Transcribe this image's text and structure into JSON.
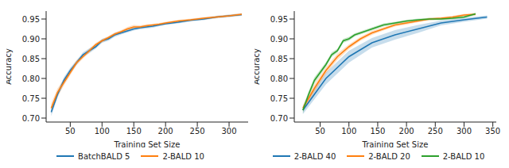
{
  "chart_data": [
    {
      "type": "line",
      "x_label": "Training Set Size",
      "y_label": "Accuracy",
      "xlim": [
        12,
        330
      ],
      "xticks": [
        50,
        100,
        150,
        200,
        250,
        300
      ],
      "ylim": [
        0.69,
        0.97
      ],
      "yticks": [
        {
          "value": 0.7,
          "label": "0.70"
        },
        0.75,
        {
          "value": 0.8,
          "label": "0.80"
        },
        0.85,
        {
          "value": 0.9,
          "label": "0.90"
        },
        0.95
      ],
      "grid": false,
      "legend": "bottom",
      "series": [
        {
          "name": "BatchBALD 5",
          "color": "#1f77b4",
          "x": [
            20,
            30,
            40,
            50,
            60,
            70,
            80,
            90,
            100,
            110,
            120,
            130,
            140,
            150,
            160,
            170,
            180,
            190,
            200,
            220,
            240,
            260,
            280,
            300,
            320
          ],
          "values": [
            0.715,
            0.76,
            0.795,
            0.82,
            0.84,
            0.86,
            0.87,
            0.88,
            0.895,
            0.9,
            0.91,
            0.915,
            0.92,
            0.925,
            0.928,
            0.93,
            0.932,
            0.935,
            0.938,
            0.942,
            0.947,
            0.95,
            0.955,
            0.958,
            0.961
          ],
          "error": [
            0.01,
            0.008,
            0.008,
            0.007,
            0.006,
            0.006,
            0.006,
            0.005,
            0.005,
            0.005,
            0.005,
            0.004,
            0.004,
            0.004,
            0.004,
            0.004,
            0.004,
            0.003,
            0.003,
            0.003,
            0.003,
            0.003,
            0.003,
            0.003,
            0.003
          ]
        },
        {
          "name": "2-BALD 10",
          "color": "#ff7f0e",
          "x": [
            20,
            30,
            40,
            50,
            60,
            70,
            80,
            90,
            100,
            110,
            120,
            130,
            140,
            150,
            160,
            170,
            180,
            190,
            200,
            220,
            240,
            260,
            280,
            300,
            320
          ],
          "values": [
            0.725,
            0.765,
            0.79,
            0.815,
            0.84,
            0.855,
            0.87,
            0.885,
            0.895,
            0.903,
            0.912,
            0.918,
            0.925,
            0.93,
            0.93,
            0.933,
            0.935,
            0.937,
            0.94,
            0.945,
            0.948,
            0.952,
            0.955,
            0.958,
            0.962
          ],
          "error": [
            0.012,
            0.01,
            0.008,
            0.007,
            0.006,
            0.005,
            0.005,
            0.005,
            0.004,
            0.004,
            0.004,
            0.004,
            0.005,
            0.005,
            0.004,
            0.004,
            0.003,
            0.003,
            0.003,
            0.003,
            0.003,
            0.003,
            0.003,
            0.003,
            0.003
          ]
        }
      ]
    },
    {
      "type": "line",
      "x_label": "Training Set Size",
      "y_label": "Accuracy",
      "xlim": [
        5,
        356
      ],
      "xticks": [
        50,
        100,
        150,
        200,
        250,
        300,
        350
      ],
      "ylim": [
        0.69,
        0.97
      ],
      "yticks": [
        {
          "value": 0.7,
          "label": "0.70"
        },
        0.75,
        {
          "value": 0.8,
          "label": "0.80"
        },
        0.85,
        {
          "value": 0.9,
          "label": "0.90"
        },
        0.95
      ],
      "grid": false,
      "legend": "bottom",
      "series": [
        {
          "name": "2-BALD 40",
          "color": "#1f77b4",
          "x": [
            20,
            60,
            100,
            140,
            180,
            220,
            260,
            300,
            340
          ],
          "values": [
            0.72,
            0.8,
            0.855,
            0.89,
            0.91,
            0.925,
            0.94,
            0.948,
            0.955
          ],
          "error": [
            0.01,
            0.015,
            0.015,
            0.012,
            0.012,
            0.01,
            0.006,
            0.005,
            0.004
          ]
        },
        {
          "name": "2-BALD 20",
          "color": "#ff7f0e",
          "x": [
            20,
            40,
            60,
            80,
            100,
            120,
            140,
            160,
            180,
            200,
            220,
            240,
            260,
            280,
            300,
            320
          ],
          "values": [
            0.725,
            0.775,
            0.82,
            0.855,
            0.88,
            0.9,
            0.915,
            0.925,
            0.935,
            0.94,
            0.945,
            0.95,
            0.952,
            0.955,
            0.96,
            0.962
          ],
          "error": [
            0.008,
            0.01,
            0.008,
            0.008,
            0.006,
            0.005,
            0.005,
            0.004,
            0.004,
            0.004,
            0.003,
            0.003,
            0.003,
            0.003,
            0.003,
            0.003
          ]
        },
        {
          "name": "2-BALD 10",
          "color": "#2ca02c",
          "x": [
            20,
            30,
            40,
            50,
            60,
            70,
            80,
            90,
            100,
            110,
            120,
            130,
            140,
            150,
            160,
            180,
            200,
            220,
            240,
            260,
            280,
            300,
            320
          ],
          "values": [
            0.72,
            0.76,
            0.795,
            0.815,
            0.835,
            0.86,
            0.87,
            0.895,
            0.9,
            0.91,
            0.915,
            0.92,
            0.925,
            0.93,
            0.935,
            0.94,
            0.945,
            0.948,
            0.95,
            0.95,
            0.952,
            0.955,
            0.963
          ],
          "error": [
            0.008,
            0.008,
            0.008,
            0.007,
            0.006,
            0.006,
            0.005,
            0.005,
            0.005,
            0.004,
            0.004,
            0.004,
            0.004,
            0.004,
            0.004,
            0.003,
            0.003,
            0.003,
            0.003,
            0.003,
            0.003,
            0.003,
            0.003
          ]
        }
      ]
    }
  ]
}
